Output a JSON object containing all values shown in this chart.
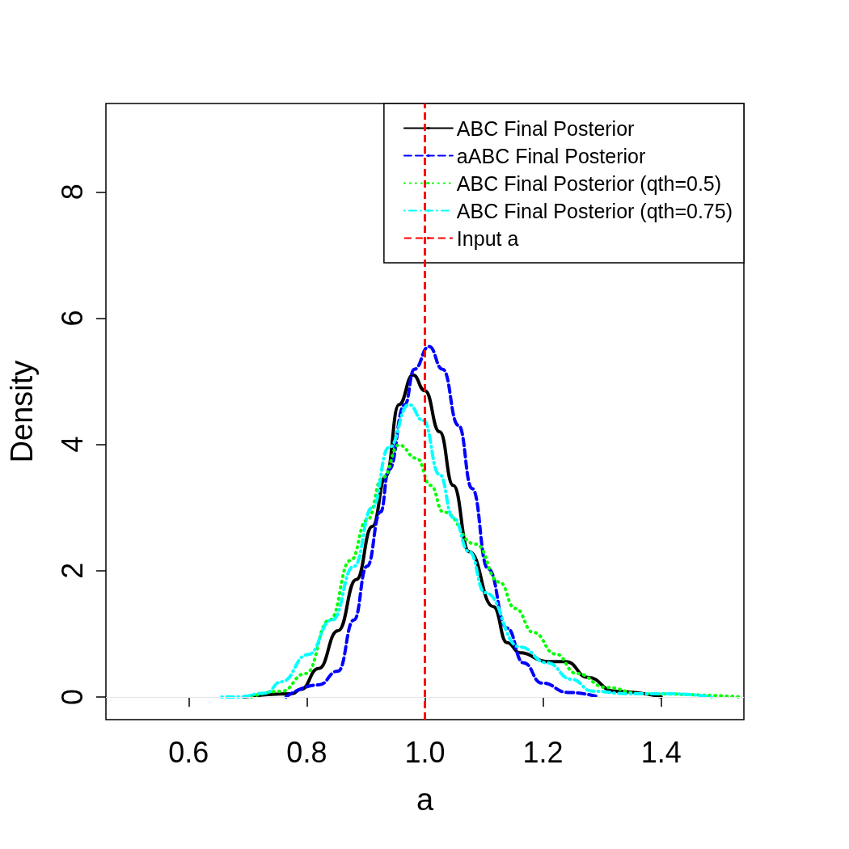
{
  "chart_data": {
    "type": "line",
    "xlabel": "a",
    "ylabel": "Density",
    "xlim": [
      0.46,
      1.54
    ],
    "ylim": [
      -0.36,
      9.4
    ],
    "xticks": [
      {
        "value": 0.6,
        "label": "0.6"
      },
      {
        "value": 0.8,
        "label": "0.8"
      },
      {
        "value": 1.0,
        "label": "1.0"
      },
      {
        "value": 1.2,
        "label": "1.2"
      },
      {
        "value": 1.4,
        "label": "1.4"
      }
    ],
    "yticks": [
      0,
      2,
      4,
      6,
      8
    ],
    "grid": false,
    "legend": "top right",
    "marker": "none",
    "series": [
      {
        "name": "ABC Final Posterior",
        "color": "#000000",
        "line_style": "solid",
        "x": [
          0.693,
          0.775,
          0.79,
          0.82,
          0.853,
          0.884,
          0.911,
          0.934,
          0.956,
          0.98,
          1.0,
          1.025,
          1.048,
          1.075,
          1.116,
          1.139,
          1.161,
          1.207,
          1.239,
          1.276,
          1.321,
          1.4
        ],
        "values": [
          0,
          0.05,
          0.12,
          0.45,
          1.05,
          1.86,
          2.7,
          3.5,
          4.63,
          5.1,
          4.85,
          4.2,
          3.35,
          2.3,
          1.43,
          0.86,
          0.7,
          0.56,
          0.56,
          0.31,
          0.09,
          0
        ]
      },
      {
        "name": "aABC Final Posterior",
        "color": "#0000ff",
        "line_style": "dashed",
        "x": [
          0.765,
          0.82,
          0.853,
          0.88,
          0.902,
          0.925,
          0.939,
          0.966,
          0.982,
          1.007,
          1.03,
          1.057,
          1.08,
          1.107,
          1.139,
          1.167,
          1.198,
          1.243,
          1.294
        ],
        "values": [
          0,
          0.19,
          0.41,
          1.22,
          2.07,
          2.93,
          3.6,
          4.63,
          5.19,
          5.55,
          5.19,
          4.3,
          3.3,
          2.03,
          1.09,
          0.54,
          0.22,
          0.07,
          0
        ]
      },
      {
        "name": "ABC Final Posterior (qth=0.5)",
        "color": "#00ff00",
        "line_style": "dotted",
        "x": [
          0.706,
          0.757,
          0.798,
          0.839,
          0.874,
          0.902,
          0.929,
          0.956,
          0.986,
          1.01,
          1.031,
          1.086,
          1.126,
          1.153,
          1.184,
          1.221,
          1.257,
          1.307,
          1.366,
          1.535
        ],
        "values": [
          0,
          0.09,
          0.37,
          1.22,
          2.16,
          2.8,
          3.48,
          3.99,
          3.78,
          3.35,
          2.93,
          2.42,
          1.82,
          1.4,
          1.02,
          0.68,
          0.37,
          0.15,
          0.05,
          0
        ]
      },
      {
        "name": "ABC Final Posterior (qth=0.75)",
        "color": "#00ffff",
        "line_style": "dashdot",
        "x": [
          0.656,
          0.683,
          0.73,
          0.757,
          0.802,
          0.843,
          0.88,
          0.911,
          0.939,
          0.973,
          0.997,
          1.025,
          1.048,
          1.075,
          1.102,
          1.161,
          1.207,
          1.248,
          1.284,
          1.344,
          1.416,
          1.485
        ],
        "values": [
          0,
          0,
          0.06,
          0.24,
          0.67,
          1.22,
          2.07,
          3.0,
          3.95,
          4.63,
          4.38,
          3.52,
          2.84,
          2.3,
          1.65,
          0.79,
          0.54,
          0.28,
          0.09,
          0.05,
          0.05,
          0
        ]
      }
    ],
    "ref_lines": [
      {
        "axis": "x",
        "value": 1.0,
        "label": "Input a",
        "color": "#ff0000",
        "line_style": "dashed"
      },
      {
        "axis": "y",
        "value": 0,
        "color": "#e6e6e6",
        "line_style": "solid"
      }
    ]
  }
}
